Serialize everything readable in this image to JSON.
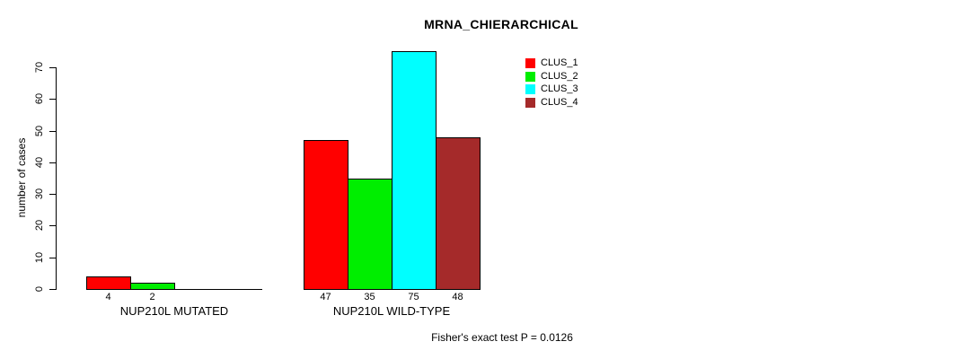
{
  "title": "MRNA_CHIERARCHICAL",
  "footer": "Fisher's exact test P = 0.0126",
  "chart_data": {
    "type": "bar",
    "title": "MRNA_CHIERARCHICAL",
    "ylabel": "number of cases",
    "xlabel": "",
    "ylim": [
      0,
      70
    ],
    "yticks": [
      0,
      10,
      20,
      30,
      40,
      50,
      60,
      70
    ],
    "grid": false,
    "legend_position": "top-right",
    "categories": [
      "NUP210L MUTATED",
      "NUP210L WILD-TYPE"
    ],
    "series": [
      {
        "name": "CLUS_1",
        "color": "#ff0000",
        "values": [
          4,
          47
        ]
      },
      {
        "name": "CLUS_2",
        "color": "#00ee00",
        "values": [
          2,
          35
        ]
      },
      {
        "name": "CLUS_3",
        "color": "#00ffff",
        "values": [
          0,
          75
        ]
      },
      {
        "name": "CLUS_4",
        "color": "#a52a2a",
        "values": [
          0,
          48
        ]
      }
    ],
    "bar_value_labels": [
      [
        "4",
        "2",
        "",
        ""
      ],
      [
        "47",
        "35",
        "75",
        "48"
      ]
    ],
    "annotation": "Fisher's exact test P = 0.0126"
  }
}
